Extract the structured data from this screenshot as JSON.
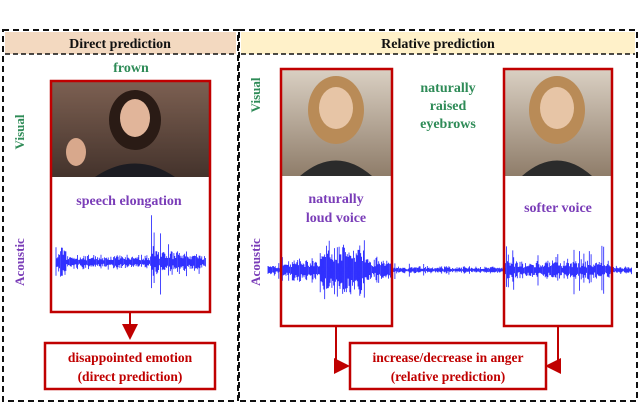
{
  "panels": {
    "direct": {
      "title": "Direct prediction",
      "header_color": "#f3d9c0"
    },
    "relative": {
      "title": "Relative prediction",
      "header_color": "#fff1c9"
    }
  },
  "row_labels": {
    "visual": "Visual",
    "acoustic": "Acoustic"
  },
  "direct_annotations": {
    "visual_cue": "frown",
    "acoustic_cue": "speech elongation",
    "output_line1": "disappointed emotion",
    "output_line2": "(direct prediction)"
  },
  "relative_annotations": {
    "visual_cue_line1": "naturally",
    "visual_cue_line2": "raised",
    "visual_cue_line3": "eyebrows",
    "left_acoustic_line1": "naturally",
    "left_acoustic_line2": "loud voice",
    "right_acoustic": "softer voice",
    "output_line1": "increase/decrease in anger",
    "output_line2": "(relative prediction)"
  },
  "colors": {
    "red_frame": "#c00000",
    "waveform": "#1a1aff",
    "green_text": "#2e8b57",
    "purple_text": "#7a3db8"
  }
}
